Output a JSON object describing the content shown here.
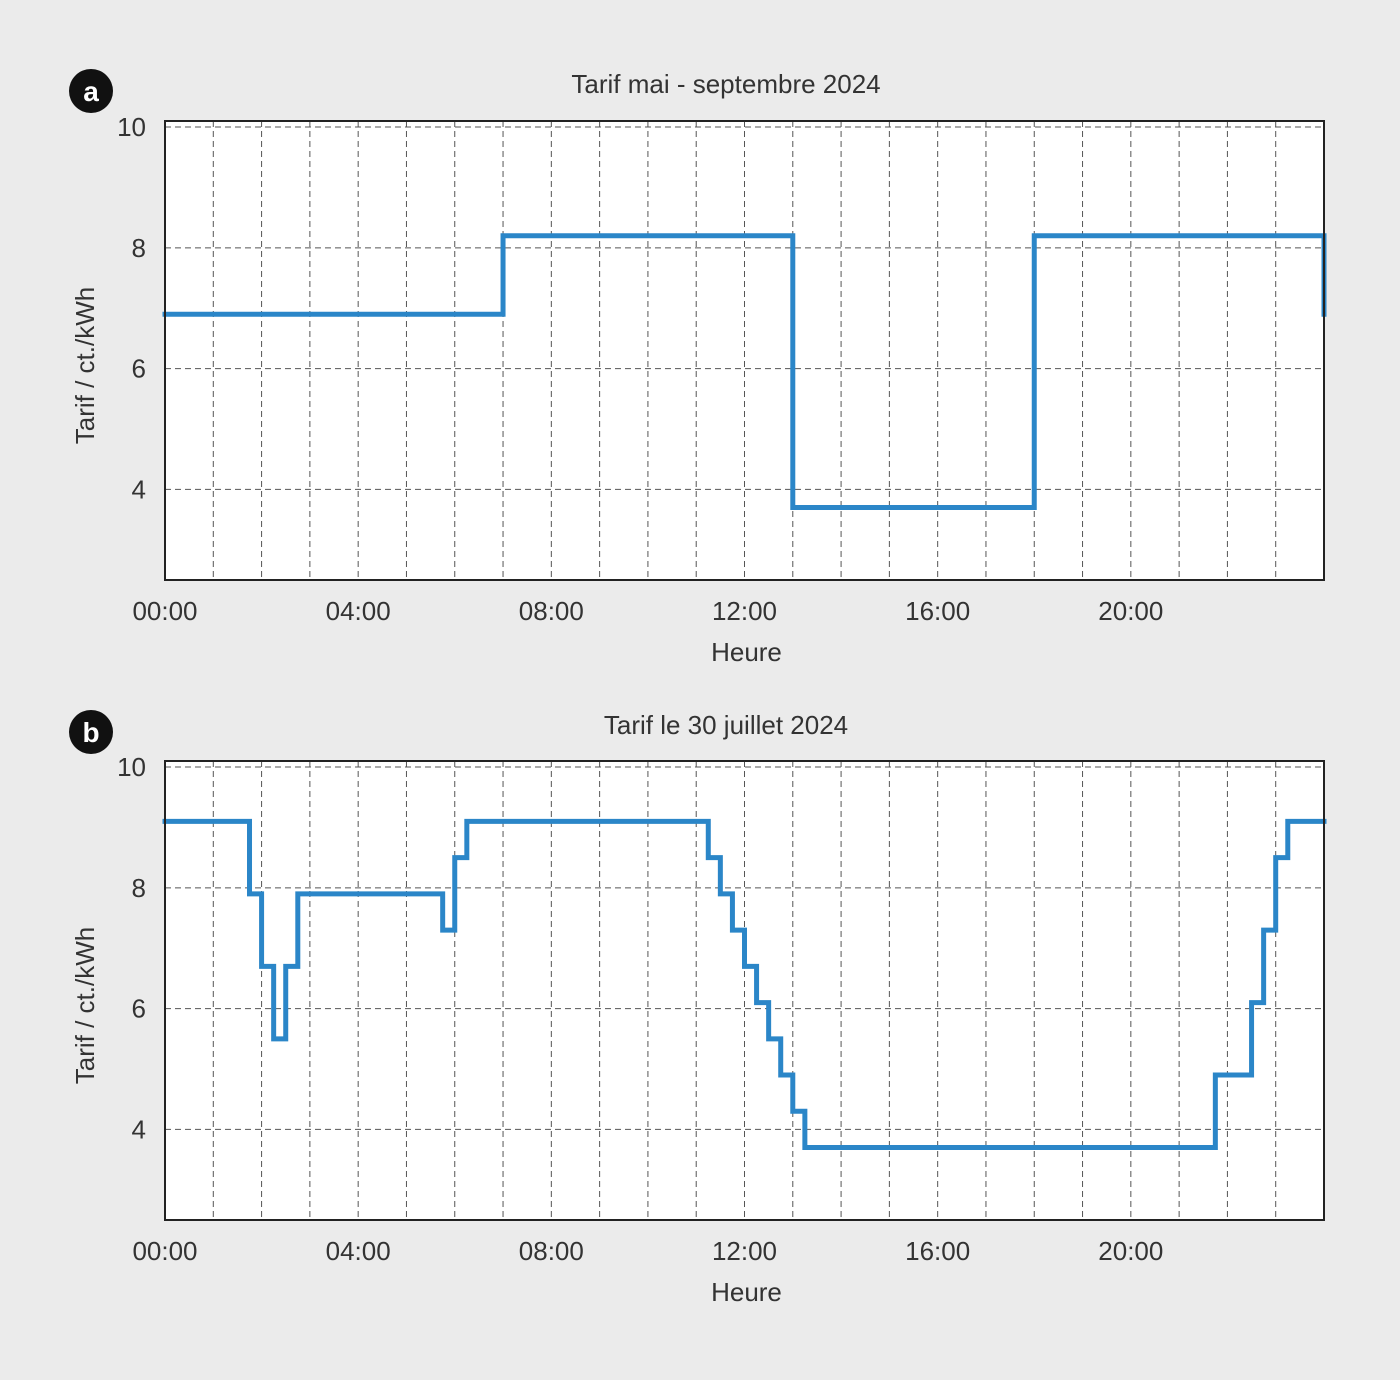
{
  "colors": {
    "background": "#ebebeb",
    "plot_background": "#ffffff",
    "line": "#2b86c8",
    "grid": "#555555",
    "text": "#333333",
    "badge": "#111111"
  },
  "chart_data": [
    {
      "panel_label": "a",
      "type": "line",
      "step": "post",
      "title": "Tarif mai - septembre 2024",
      "xlabel": "Heure",
      "ylabel": "Tarif / ct./kWh",
      "xlim": [
        0,
        24
      ],
      "ylim": [
        2.5,
        10.1
      ],
      "xticks": [
        "00:00",
        "04:00",
        "08:00",
        "12:00",
        "16:00",
        "20:00"
      ],
      "yticks": [
        "4",
        "6",
        "8",
        "10"
      ],
      "grid": true,
      "series": [
        {
          "x": [
            0,
            7,
            13,
            18,
            24
          ],
          "y": [
            6.9,
            8.2,
            3.7,
            8.2,
            6.9
          ]
        }
      ]
    },
    {
      "panel_label": "b",
      "type": "line",
      "step": "post",
      "title": "Tarif le 30 juillet 2024",
      "xlabel": "Heure",
      "ylabel": "Tarif / ct./kWh",
      "xlim": [
        0,
        24
      ],
      "ylim": [
        2.5,
        10.1
      ],
      "xticks": [
        "00:00",
        "04:00",
        "08:00",
        "12:00",
        "16:00",
        "20:00"
      ],
      "yticks": [
        "4",
        "6",
        "8",
        "10"
      ],
      "grid": true,
      "series": [
        {
          "x": [
            0,
            1.75,
            2,
            2.25,
            2.5,
            2.75,
            5.75,
            6,
            6.25,
            11.25,
            11.5,
            11.75,
            12,
            12.25,
            12.5,
            12.75,
            13,
            13.25,
            21.75,
            22.5,
            22.75,
            23,
            23.25,
            24
          ],
          "y": [
            9.1,
            7.9,
            6.7,
            5.5,
            6.7,
            7.9,
            7.3,
            8.5,
            9.1,
            8.5,
            7.9,
            7.3,
            6.7,
            6.1,
            5.5,
            4.9,
            4.3,
            3.7,
            4.9,
            6.1,
            7.3,
            8.5,
            9.1,
            9.1
          ]
        }
      ]
    }
  ]
}
